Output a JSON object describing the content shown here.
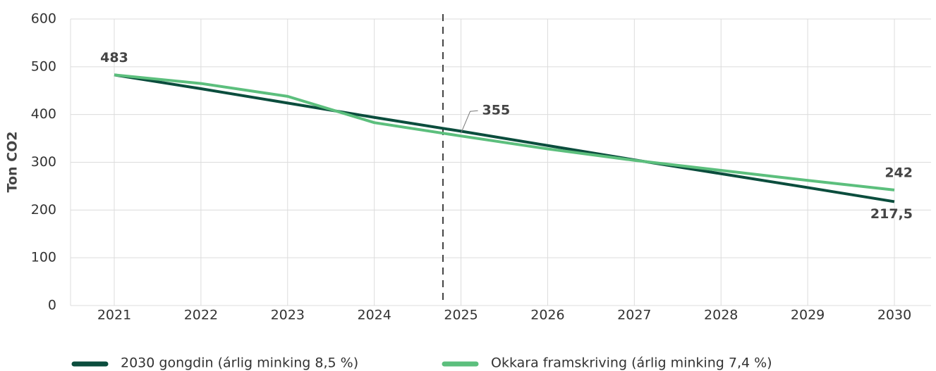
{
  "chart_data": {
    "type": "line",
    "y_label": "Ton CO2",
    "categories": [
      "2021",
      "2022",
      "2023",
      "2024",
      "2025",
      "2026",
      "2027",
      "2028",
      "2029",
      "2030"
    ],
    "series": [
      {
        "name": "2030 gongdin (árlig minking 8,5 %)",
        "color": "#0b4d3d",
        "values": [
          483,
          454,
          424,
          394,
          365,
          335,
          305,
          276,
          247,
          217.5
        ],
        "value_labels": [
          "483",
          null,
          null,
          null,
          null,
          null,
          null,
          null,
          null,
          "217,5"
        ]
      },
      {
        "name": "Okkara framskriving  (árlig minking 7,4 %)",
        "color": "#5cbf7d",
        "values": [
          483,
          465,
          438,
          383,
          355,
          328,
          304,
          283,
          262,
          242
        ],
        "value_labels": [
          null,
          null,
          null,
          null,
          "355",
          null,
          null,
          null,
          null,
          "242"
        ]
      }
    ],
    "ylim": [
      0,
      600
    ],
    "yticks": [
      0,
      100,
      200,
      300,
      400,
      500,
      600
    ],
    "grid": true
  }
}
